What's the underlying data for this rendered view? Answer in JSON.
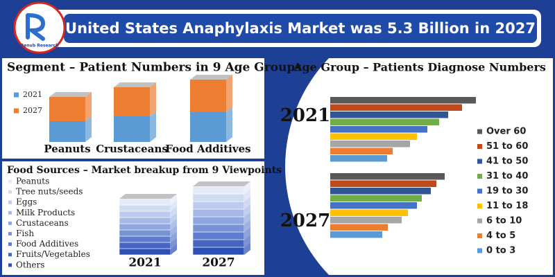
{
  "header": {
    "title": "United States Anaphylaxis Market was 5.3 Billion in 2027",
    "brand": "Renub Research"
  },
  "chart_data": [
    {
      "type": "bar",
      "stacked": true,
      "orientation": "vertical",
      "title": "Segment – Patient Numbers in 9 Age Groups",
      "categories": [
        "Peanuts",
        "Crustaceans",
        "Food Additives"
      ],
      "series": [
        {
          "name": "2021",
          "color": "#5b9bd5",
          "values": [
            30,
            37,
            43
          ]
        },
        {
          "name": "2027",
          "color": "#ed7d31",
          "values": [
            35,
            42,
            47
          ]
        }
      ],
      "legend": "left"
    },
    {
      "type": "bar",
      "stacked": true,
      "orientation": "vertical",
      "title": "Food Sources – Market breakup from 9 Viewpoints",
      "categories": [
        "2021",
        "2027"
      ],
      "series": [
        {
          "name": "Peanuts",
          "color": "#e4eaf8",
          "values": [
            9,
            11
          ]
        },
        {
          "name": "Tree nuts/seeds",
          "color": "#d0dbf3",
          "values": [
            9,
            11
          ]
        },
        {
          "name": "Eggs",
          "color": "#bccbee",
          "values": [
            9,
            11
          ]
        },
        {
          "name": "Milk Products",
          "color": "#a6b9e6",
          "values": [
            9,
            11
          ]
        },
        {
          "name": "Crustaceans",
          "color": "#8fa6de",
          "values": [
            9,
            11
          ]
        },
        {
          "name": "Fish",
          "color": "#7792d5",
          "values": [
            9,
            11
          ]
        },
        {
          "name": "Food Additives",
          "color": "#5e7ccb",
          "values": [
            9,
            11
          ]
        },
        {
          "name": "Fruits/Vegetables",
          "color": "#4565c0",
          "values": [
            9,
            11
          ]
        },
        {
          "name": "Others",
          "color": "#2e4fb3",
          "values": [
            9,
            11
          ]
        }
      ],
      "legend": "left"
    },
    {
      "type": "bar",
      "stacked": false,
      "orientation": "horizontal",
      "title": "Age Group – Patients Diagnose Numbers",
      "categories": [
        "2021",
        "2027"
      ],
      "series": [
        {
          "name": "Over 60",
          "color": "#595959",
          "values": [
            210,
            165
          ]
        },
        {
          "name": "51 to 60",
          "color": "#c0481a",
          "values": [
            190,
            153
          ]
        },
        {
          "name": "41 to 50",
          "color": "#2f5597",
          "values": [
            170,
            145
          ]
        },
        {
          "name": "31 to 40",
          "color": "#70ad47",
          "values": [
            157,
            132
          ]
        },
        {
          "name": "19 to 30",
          "color": "#4472c4",
          "values": [
            140,
            125
          ]
        },
        {
          "name": "11 to 18",
          "color": "#ffc000",
          "values": [
            125,
            112
          ]
        },
        {
          "name": "6 to 10",
          "color": "#a5a5a5",
          "values": [
            115,
            103
          ]
        },
        {
          "name": "4 to 5",
          "color": "#ed7d31",
          "values": [
            90,
            83
          ]
        },
        {
          "name": "0 to 3",
          "color": "#5b9bd5",
          "values": [
            82,
            75
          ]
        }
      ],
      "legend": "right"
    }
  ]
}
